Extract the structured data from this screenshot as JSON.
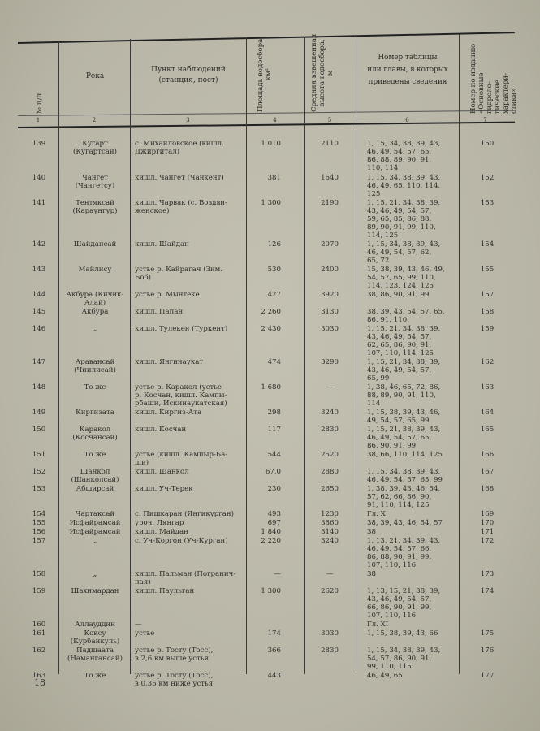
{
  "header": {
    "col1": "№ п/п",
    "col2": "Река",
    "col3": "Пункт наблюдений\n(станция, пост)",
    "col4": "Площадь водосбора,\nкм²",
    "col5": "Средняя взвешенная\nвысота водосбора,\nм",
    "col6": "Номер таблицы\nили главы, в которых\nприведены сведения",
    "col7": "Номер по изданию\n«Основные гидроло-\nгические характери-\nстики»",
    "numbers": [
      "1",
      "2",
      "3",
      "4",
      "5",
      "6",
      "7"
    ]
  },
  "rows": [
    {
      "n": "139",
      "river": "Кугарт\n(Кугартсай)",
      "station": "с. Михайловское (кишл.\n    Джиргитал)",
      "area": "1 010",
      "height": "2110",
      "refs": "1, 15, 34, 38, 39, 43,\n  46, 49, 54, 57, 65,\n  86, 88, 89, 90, 91,\n  110, 114",
      "ed": "150"
    },
    {
      "n": "140",
      "river": "Чангет\n(Чангетсу)",
      "station": "кишл. Чангет (Чанкент)",
      "area": "381",
      "height": "1640",
      "refs": "1, 15, 34, 38, 39, 43,\n  46, 49, 65, 110, 114,\n  125",
      "ed": "152"
    },
    {
      "n": "141",
      "river": "Тентяксай\n(Караунгур)",
      "station": "кишл. Чарвак (с. Воздви-\n    женское)",
      "area": "1 300",
      "height": "2190",
      "refs": "1, 15, 21, 34, 38, 39,\n  43, 46, 49, 54, 57,\n  59, 65, 85, 86, 88,\n  89, 90, 91, 99, 110,\n  114, 125",
      "ed": "153"
    },
    {
      "n": "142",
      "river": "Шайдансай",
      "station": "кишл. Шайдан",
      "area": "126",
      "height": "2070",
      "refs": "1, 15, 34, 38, 39, 43,\n  46, 49, 54, 57, 62,\n  65, 72",
      "ed": "154"
    },
    {
      "n": "143",
      "river": "Майлису",
      "station": "устье р. Кайрагач (Зим.\n    Боб)",
      "area": "530",
      "height": "2400",
      "refs": "15, 38, 39, 43, 46, 49,\n  54, 57, 65, 99, 110,\n  114, 123, 124, 125",
      "ed": "155"
    },
    {
      "n": "144",
      "river": "Акбура (Кичик-\nАлай)",
      "station": "устье р. Мынтеке",
      "area": "427",
      "height": "3920",
      "refs": "38, 86, 90, 91, 99",
      "ed": "157"
    },
    {
      "n": "145",
      "river": "Акбура",
      "station": "кишл. Папан",
      "area": "2 260",
      "height": "3130",
      "refs": "38, 39, 43, 54, 57, 65,\n  86, 91, 110",
      "ed": "158"
    },
    {
      "n": "146",
      "river": "„",
      "station": "кишл. Тулекен (Туркент)",
      "area": "2 430",
      "height": "3030",
      "refs": "1, 15, 21, 34, 38, 39,\n  43, 46, 49, 54, 57,\n  62, 65, 86, 90, 91,\n  107, 110, 114, 125",
      "ed": "159"
    },
    {
      "n": "147",
      "river": "Аравансай\n(Чиилисай)",
      "station": "кишл. Янгинаукат",
      "area": "474",
      "height": "3290",
      "refs": "1, 15, 21, 34, 38, 39,\n  43, 46, 49, 54, 57,\n  65, 99",
      "ed": "162"
    },
    {
      "n": "148",
      "river": "То же",
      "station": "устье р. Каракол (устье\n    р. Косчан, кишл. Кампы-\n    рбаши, Искинаукатская)",
      "area": "1 680",
      "height": "—",
      "refs": "1, 38, 46, 65, 72, 86,\n  88, 89, 90, 91, 110,\n  114",
      "ed": "163"
    },
    {
      "n": "149",
      "river": "Киргизата",
      "station": "кишл. Киргиз-Ата",
      "area": "298",
      "height": "3240",
      "refs": "1, 15, 38, 39, 43, 46,\n  49, 54, 57, 65, 99",
      "ed": "164"
    },
    {
      "n": "150",
      "river": "Каракол\n(Косчансай)",
      "station": "кишл. Косчан",
      "area": "117",
      "height": "2830",
      "refs": "1, 15, 21, 38, 39, 43,\n  46, 49, 54, 57, 65,\n  86, 90, 91, 99",
      "ed": "165"
    },
    {
      "n": "151",
      "river": "То же",
      "station": "устье (кишл. Кампыр-Ба-\n    ши)",
      "area": "544",
      "height": "2520",
      "refs": "38, 66, 110, 114, 125",
      "ed": "166"
    },
    {
      "n": "152",
      "river": "Шанкол\n(Шанколсай)",
      "station": "кишл. Шанкол",
      "area": "67,0",
      "height": "2880",
      "refs": "1, 15, 34, 38, 39, 43,\n  46, 49, 54, 57, 65, 99",
      "ed": "167"
    },
    {
      "n": "153",
      "river": "Абширсай",
      "station": "кишл. Уч-Терек",
      "area": "230",
      "height": "2650",
      "refs": "1, 38, 39, 43, 46, 54,\n  57, 62, 66, 86, 90,\n  91, 110, 114, 125",
      "ed": "168"
    },
    {
      "n": "154",
      "river": "Чартаксай",
      "station": "с. Пишкаран (Янгикурган)",
      "area": "493",
      "height": "1230",
      "refs": "Гл. X",
      "ed": "169"
    },
    {
      "n": "155",
      "river": "Исфайрамсай",
      "station": "уроч. Лянгар",
      "area": "697",
      "height": "3860",
      "refs": "38, 39, 43, 46, 54, 57",
      "ed": "170"
    },
    {
      "n": "156",
      "river": "Исфайрамсай",
      "station": "кишл. Майдан",
      "area": "1 840",
      "height": "3140",
      "refs": "38",
      "ed": "171"
    },
    {
      "n": "157",
      "river": "„",
      "station": "с. Уч-Коргон (Уч-Курган)",
      "area": "2 220",
      "height": "3240",
      "refs": "1, 13, 21, 34, 39, 43,\n  46, 49, 54, 57, 66,\n  86, 88, 90, 91, 99,\n  107, 110, 116",
      "ed": "172"
    },
    {
      "n": "158",
      "river": "„",
      "station": "кишл. Пальман (Погранич-\n    ная)",
      "area": "—",
      "height": "—",
      "refs": "38",
      "ed": "173"
    },
    {
      "n": "159",
      "river": "Шахимардан",
      "station": "кишл. Паульган",
      "area": "1 300",
      "height": "2620",
      "refs": "1, 13, 15, 21, 38, 39,\n  43, 46, 49, 54, 57,\n  66, 86, 90, 91, 99,\n  107, 110, 116",
      "ed": "174"
    },
    {
      "n": "160",
      "river": "Аллауддин",
      "station": "—",
      "area": "",
      "height": "",
      "refs": "Гл. XI",
      "ed": ""
    },
    {
      "n": "161",
      "river": "Коксу\n(Курбанкуль)",
      "station": "устье",
      "area": "174",
      "height": "3030",
      "refs": "1, 15, 38, 39, 43, 66",
      "ed": "175"
    },
    {
      "n": "162",
      "river": "Падшаата\n(Намангансай)",
      "station": "устье р. Тосту (Тосс),\n    в 2,6 км выше устья",
      "area": "366",
      "height": "2830",
      "refs": "1, 15, 34, 38, 39, 43,\n  54, 57, 86, 90, 91,\n  99, 110, 115",
      "ed": "176"
    },
    {
      "n": "163",
      "river": "То же",
      "station": "устье р. Тосту (Тосс),\n    в 0,35 км ниже устья",
      "area": "443",
      "height": "",
      "refs": "46, 49, 65",
      "ed": "177"
    }
  ],
  "page_number": "18"
}
